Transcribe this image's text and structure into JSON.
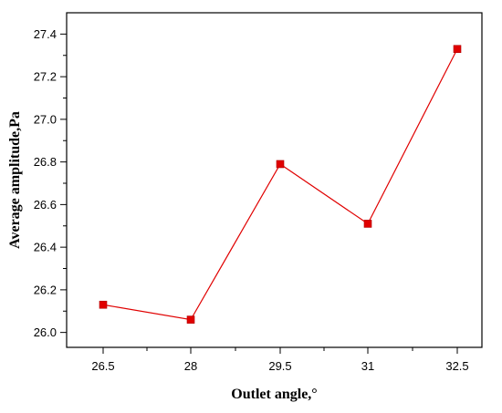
{
  "chart_data": {
    "type": "line",
    "x": [
      26.5,
      28,
      29.5,
      31,
      32.5
    ],
    "x_tick_labels": [
      "26.5",
      "28",
      "29.5",
      "31",
      "32.5"
    ],
    "series": [
      {
        "values": [
          26.13,
          26.06,
          26.79,
          26.51,
          27.33
        ],
        "color": "#e00000",
        "marker": "square"
      }
    ],
    "xlabel": "Outlet angle,°",
    "ylabel": "Average amplitude,Pa",
    "yticks": [
      26.0,
      26.2,
      26.4,
      26.6,
      26.8,
      27.0,
      27.2,
      27.4
    ],
    "y_tick_labels": [
      "26.0",
      "26.2",
      "26.4",
      "26.6",
      "26.8",
      "27.0",
      "27.2",
      "27.4"
    ],
    "ylim": [
      25.93,
      27.5
    ],
    "grid": false,
    "legend": "none"
  }
}
